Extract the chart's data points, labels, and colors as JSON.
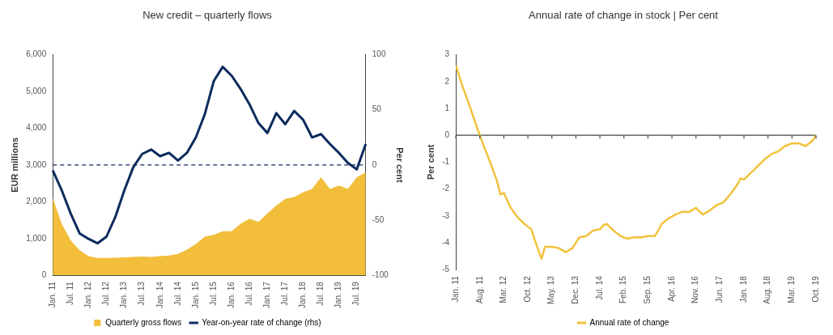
{
  "chart_data": [
    {
      "type": "line",
      "title": "New credit – quarterly flows",
      "ylabel": "EUR millions",
      "y2label": "Per cent",
      "categories": [
        "Jan. 11",
        null,
        "Jul. 11",
        null,
        "Jan. 12",
        null,
        "Jul. 12",
        null,
        "Jan. 13",
        null,
        "Jul. 13",
        null,
        "Jan. 14",
        null,
        "Jul. 14",
        null,
        "Jan. 15",
        null,
        "Jul. 15",
        null,
        "Jan. 16",
        null,
        "Jul. 16",
        null,
        "Jan. 17",
        null,
        "Jul. 17",
        null,
        "Jan. 18",
        null,
        "Jul. 18",
        null,
        "Jan. 19",
        null,
        "Jul. 19",
        null
      ],
      "series": [
        {
          "name": "Quarterly gross flows",
          "type": "area",
          "color": "#f2be3c",
          "values": [
            2100,
            1400,
            950,
            680,
            520,
            470,
            470,
            480,
            490,
            500,
            510,
            500,
            520,
            540,
            580,
            700,
            850,
            1050,
            1100,
            1200,
            1200,
            1400,
            1540,
            1450,
            1680,
            1900,
            2080,
            2130,
            2260,
            2350,
            2670,
            2350,
            2440,
            2350,
            2670,
            2800
          ]
        },
        {
          "name": "Year-on-year rate of change (rhs)",
          "type": "line",
          "axis": "y2",
          "color": "#0d2b5e",
          "values": [
            -5,
            -23,
            -44,
            -62,
            -67,
            -71,
            -65,
            -47,
            -23,
            -2,
            10,
            14,
            8,
            11,
            4,
            11,
            25,
            46,
            76,
            89,
            81,
            69,
            55,
            38,
            29,
            47,
            37,
            49,
            41,
            25,
            28,
            19,
            11,
            2,
            -4,
            19
          ]
        }
      ],
      "ylim": [
        0,
        6000
      ],
      "yticks": [
        0,
        {
          "value": 1000,
          "label": "1,000"
        },
        {
          "value": 2000,
          "label": "2,000"
        },
        {
          "value": 3000,
          "label": "3,000"
        },
        {
          "value": 4000,
          "label": "4,000"
        },
        {
          "value": 5000,
          "label": "5,000"
        },
        {
          "value": 6000,
          "label": "6,000"
        }
      ],
      "y2lim": [
        -100,
        100
      ],
      "y2ticks": [
        -100,
        -50,
        0,
        50,
        100
      ],
      "ref_lines": [
        {
          "axis": "y2",
          "value": 0,
          "color": "#0d2b5e",
          "line_style": "dashed"
        }
      ],
      "grid": false,
      "legend": "bottom"
    },
    {
      "type": "line",
      "title": "Annual rate of change in stock | Per cent",
      "ylabel": "Per cent",
      "series": [
        {
          "name": "Annual rate of change",
          "color": "#f2c23c",
          "x": [
            "2011-01",
            "2011-03",
            "2011-05",
            "2011-07",
            "2011-09",
            "2011-11",
            "2012-01",
            "2012-02",
            "2012-03",
            "2012-05",
            "2012-07",
            "2012-09",
            "2012-11",
            "2012-12",
            "2013-02",
            "2013-03",
            "2013-05",
            "2013-07",
            "2013-09",
            "2013-11",
            "2014-01",
            "2014-03",
            "2014-05",
            "2014-07",
            "2014-08",
            "2014-09",
            "2014-11",
            "2015-01",
            "2015-03",
            "2015-05",
            "2015-07",
            "2015-09",
            "2015-11",
            "2015-12",
            "2016-01",
            "2016-03",
            "2016-05",
            "2016-07",
            "2016-09",
            "2016-11",
            "2017-01",
            "2017-03",
            "2017-05",
            "2017-07",
            "2017-09",
            "2017-11",
            "2017-12",
            "2018-01",
            "2018-03",
            "2018-05",
            "2018-07",
            "2018-09",
            "2018-11",
            "2019-01",
            "2019-03",
            "2019-05",
            "2019-07",
            "2019-09",
            "2019-10"
          ],
          "values": [
            2.6,
            1.8,
            1.1,
            0.35,
            -0.35,
            -1.0,
            -1.7,
            -2.2,
            -2.15,
            -2.7,
            -3.05,
            -3.3,
            -3.5,
            -3.9,
            -4.6,
            -4.15,
            -4.15,
            -4.2,
            -4.35,
            -4.2,
            -3.8,
            -3.75,
            -3.55,
            -3.5,
            -3.35,
            -3.3,
            -3.55,
            -3.75,
            -3.85,
            -3.8,
            -3.8,
            -3.75,
            -3.75,
            -3.55,
            -3.3,
            -3.1,
            -2.95,
            -2.85,
            -2.85,
            -2.7,
            -2.95,
            -2.8,
            -2.6,
            -2.5,
            -2.2,
            -1.85,
            -1.6,
            -1.65,
            -1.4,
            -1.15,
            -0.9,
            -0.7,
            -0.6,
            -0.4,
            -0.3,
            -0.3,
            -0.4,
            -0.2,
            0.0
          ]
        }
      ],
      "xlim": [
        "2011-01",
        "2019-10"
      ],
      "xticks": [
        {
          "value": "2011-01",
          "label": "Jan. 11"
        },
        {
          "value": "2011-08",
          "label": "Aug. 11"
        },
        {
          "value": "2012-03",
          "label": "Mar. 12"
        },
        {
          "value": "2012-10",
          "label": "Oct. 12"
        },
        {
          "value": "2013-05",
          "label": "May. 13"
        },
        {
          "value": "2013-12",
          "label": "Dec. 13"
        },
        {
          "value": "2014-07",
          "label": "Jul. 14"
        },
        {
          "value": "2015-02",
          "label": "Feb. 15"
        },
        {
          "value": "2015-09",
          "label": "Sep. 15"
        },
        {
          "value": "2016-04",
          "label": "Apr. 16"
        },
        {
          "value": "2016-11",
          "label": "Nov. 16"
        },
        {
          "value": "2017-06",
          "label": "Jun. 17"
        },
        {
          "value": "2018-01",
          "label": "Jan. 18"
        },
        {
          "value": "2018-08",
          "label": "Aug. 18"
        },
        {
          "value": "2019-03",
          "label": "Mar. 19"
        },
        {
          "value": "2019-10",
          "label": "Oct. 19"
        }
      ],
      "ylim": [
        -5,
        3
      ],
      "yticks": [
        -5,
        -4,
        -3,
        -2,
        -1,
        0,
        1,
        2,
        3
      ],
      "ref_lines": [
        {
          "axis": "y",
          "value": 0,
          "color": "#444444"
        }
      ],
      "grid": false,
      "legend": "bottom"
    }
  ]
}
